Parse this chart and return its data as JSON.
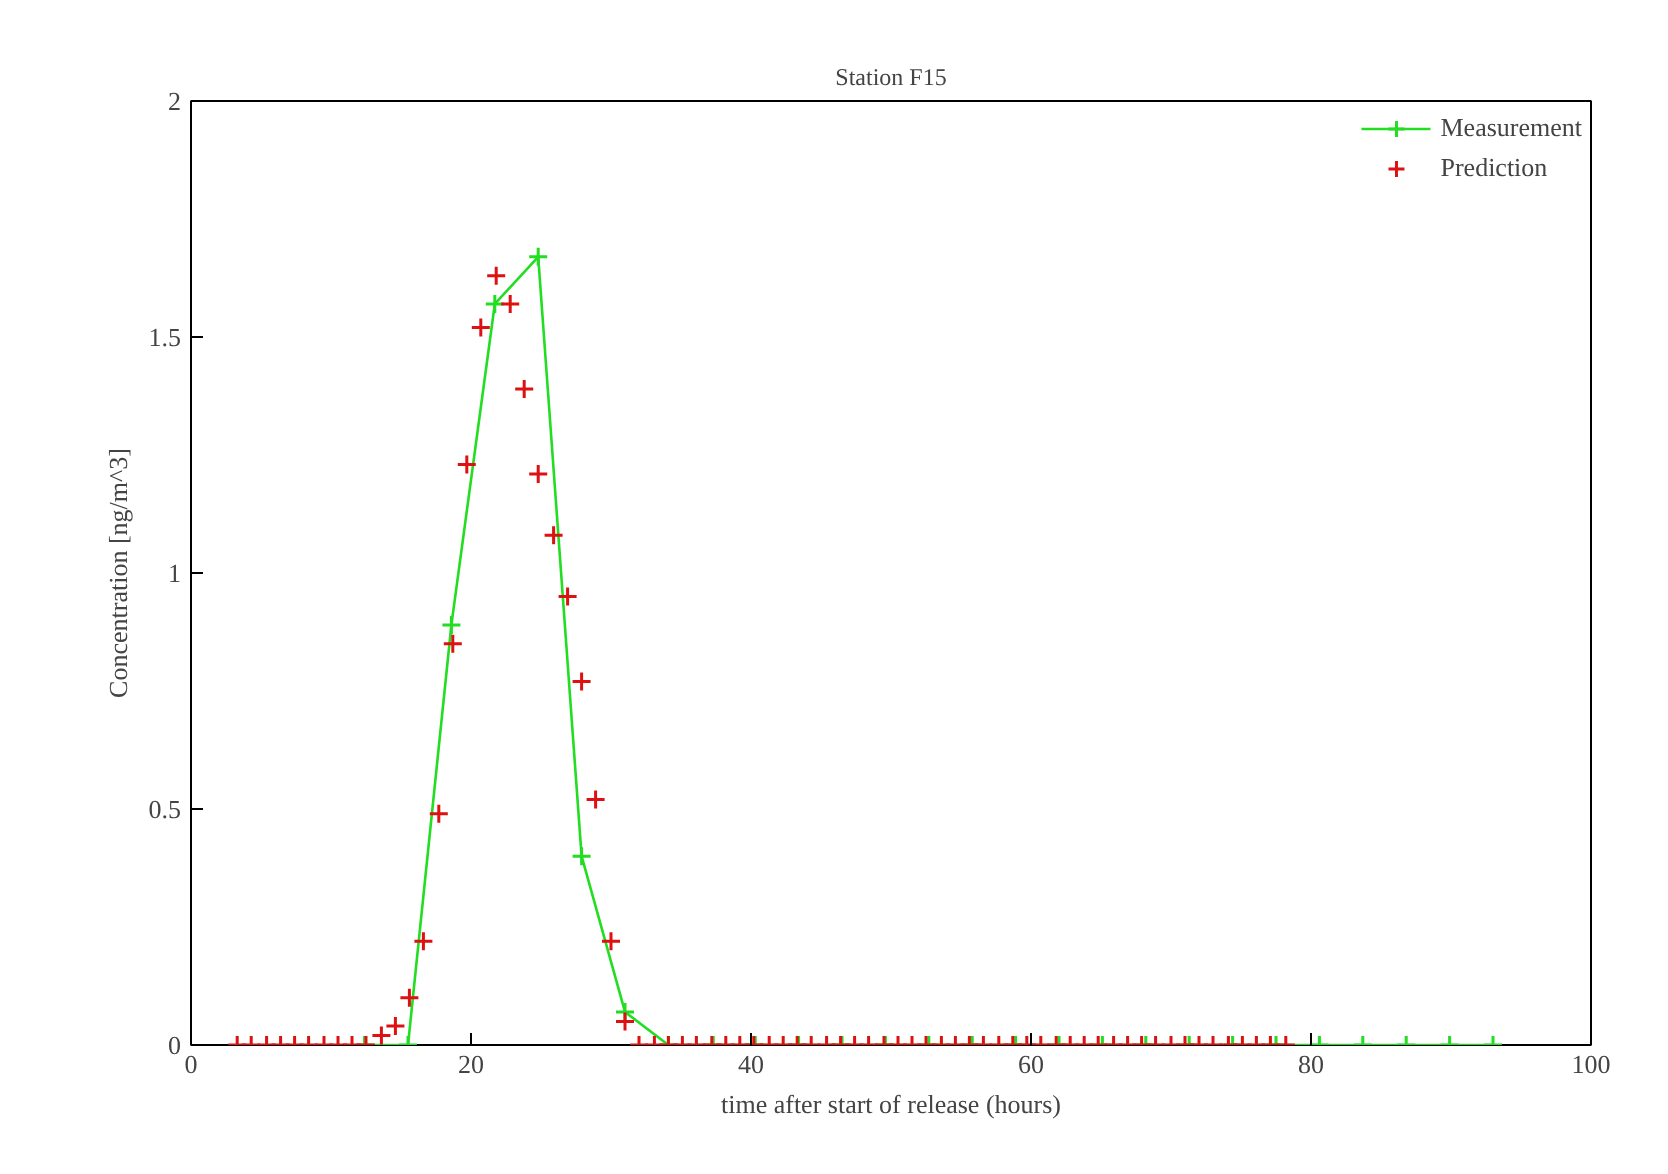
{
  "chart_data": {
    "type": "line",
    "title": "Station F15",
    "xlabel": "time after start of release (hours)",
    "ylabel": "Concentration [ng/m^3]",
    "xlim": [
      0,
      100
    ],
    "xticks": [
      0,
      20,
      40,
      60,
      80,
      100
    ],
    "ylim": [
      0,
      2
    ],
    "yticks": [
      0,
      0.5,
      1,
      1.5,
      2
    ],
    "grid": false,
    "legend": "top right",
    "marker": "cross",
    "series": [
      {
        "name": "Measurement",
        "type": "line",
        "color": "#22dd22",
        "x": [
          12.4,
          15.5,
          18.6,
          21.7,
          24.8,
          27.9,
          31.0,
          34.1,
          37.3,
          40.3,
          43.4,
          46.5,
          49.6,
          52.7,
          55.8,
          58.9,
          62.0,
          65.1,
          68.2,
          71.3,
          74.4,
          77.5,
          80.6,
          83.7,
          86.8,
          89.9,
          93.0
        ],
        "values": [
          0,
          0,
          0.89,
          1.57,
          1.67,
          0.4,
          0.07,
          0,
          0,
          0,
          0,
          0,
          0,
          0,
          0,
          0,
          0,
          0,
          0,
          0,
          0,
          0,
          0,
          0,
          0,
          0,
          0
        ]
      },
      {
        "name": "Prediction",
        "type": "scatter",
        "color": "#dd1111",
        "x": [
          3.3,
          4.3,
          5.4,
          6.4,
          7.4,
          8.4,
          9.5,
          10.5,
          11.5,
          12.5,
          13.6,
          14.6,
          15.6,
          16.6,
          17.7,
          18.7,
          19.7,
          20.7,
          21.8,
          22.8,
          23.8,
          24.8,
          25.9,
          26.9,
          27.9,
          28.9,
          30.0,
          31.0,
          32.0,
          33.1,
          34.1,
          35.1,
          36.1,
          37.2,
          38.2,
          39.2,
          40.2,
          41.3,
          42.3,
          43.3,
          44.3,
          45.4,
          46.4,
          47.4,
          48.4,
          49.5,
          50.5,
          51.5,
          52.5,
          53.6,
          54.6,
          55.6,
          56.6,
          57.7,
          58.7,
          59.7,
          60.7,
          61.8,
          62.8,
          63.8,
          64.8,
          65.9,
          66.9,
          67.9,
          68.9,
          70.0,
          71.0,
          72.0,
          73.0,
          74.1,
          75.1,
          76.1,
          77.1,
          78.2
        ],
        "values": [
          0,
          0,
          0,
          0,
          0,
          0,
          0,
          0,
          0,
          0,
          0.02,
          0.04,
          0.1,
          0.22,
          0.49,
          0.85,
          1.23,
          1.52,
          1.63,
          1.57,
          1.39,
          1.21,
          1.08,
          0.95,
          0.77,
          0.52,
          0.22,
          0.05,
          0,
          0,
          0,
          0,
          0,
          0,
          0,
          0,
          0,
          0,
          0,
          0,
          0,
          0,
          0,
          0,
          0,
          0,
          0,
          0,
          0,
          0,
          0,
          0,
          0,
          0,
          0,
          0,
          0,
          0,
          0,
          0,
          0,
          0,
          0,
          0,
          0,
          0,
          0,
          0,
          0,
          0,
          0,
          0,
          0,
          0
        ]
      }
    ]
  }
}
